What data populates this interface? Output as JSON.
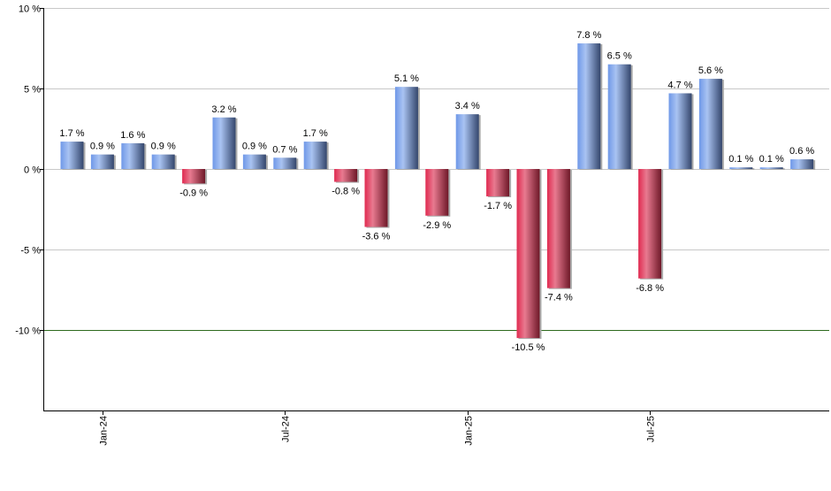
{
  "chart_data": {
    "type": "bar",
    "title": "",
    "xlabel": "",
    "ylabel": "",
    "ylim": [
      -15,
      10
    ],
    "yticks": [
      10,
      5,
      0,
      -5,
      -10
    ],
    "ytick_labels": [
      "10 %",
      "5 %",
      "0 %",
      "-5 %",
      "-10 %"
    ],
    "grid": true,
    "x_tick_labels": [
      {
        "label": "Jan-24",
        "index": 1
      },
      {
        "label": "Jul-24",
        "index": 7
      },
      {
        "label": "Jan-25",
        "index": 13
      },
      {
        "label": "Jul-25",
        "index": 19
      }
    ],
    "categories": [
      "Dec-23",
      "Jan-24",
      "Feb-24",
      "Mar-24",
      "Apr-24",
      "May-24",
      "Jun-24",
      "Jul-24",
      "Aug-24",
      "Sep-24",
      "Oct-24",
      "Nov-24",
      "Dec-24",
      "Jan-25",
      "Feb-25",
      "Mar-25",
      "Apr-25",
      "May-25",
      "Jun-25",
      "Jul-25",
      "Aug-25",
      "Sep-25",
      "Oct-25",
      "Nov-25",
      "Dec-25"
    ],
    "values": [
      1.7,
      0.9,
      1.6,
      0.9,
      -0.9,
      3.2,
      0.9,
      0.7,
      1.7,
      -0.8,
      -3.6,
      5.1,
      -2.9,
      3.4,
      -1.7,
      -10.5,
      -7.4,
      7.8,
      6.5,
      -6.8,
      4.7,
      5.6,
      0.1,
      0.1,
      0.6
    ],
    "data_labels": [
      "1.7 %",
      "0.9 %",
      "1.6 %",
      "0.9 %",
      "-0.9 %",
      "3.2 %",
      "0.9 %",
      "0.7 %",
      "1.7 %",
      "-0.8 %",
      "-3.6 %",
      "5.1 %",
      "-2.9 %",
      "3.4 %",
      "-1.7 %",
      "-10.5 %",
      "-7.4 %",
      "7.8 %",
      "6.5 %",
      "-6.8 %",
      "4.7 %",
      "5.6 %",
      "0.1 %",
      "0.1 %",
      "0.6 %"
    ],
    "colors": {
      "positive": "#6f94d8",
      "negative": "#c8284a",
      "reference_line": "#2e6b1e",
      "grid": "#c8c8c8"
    }
  }
}
